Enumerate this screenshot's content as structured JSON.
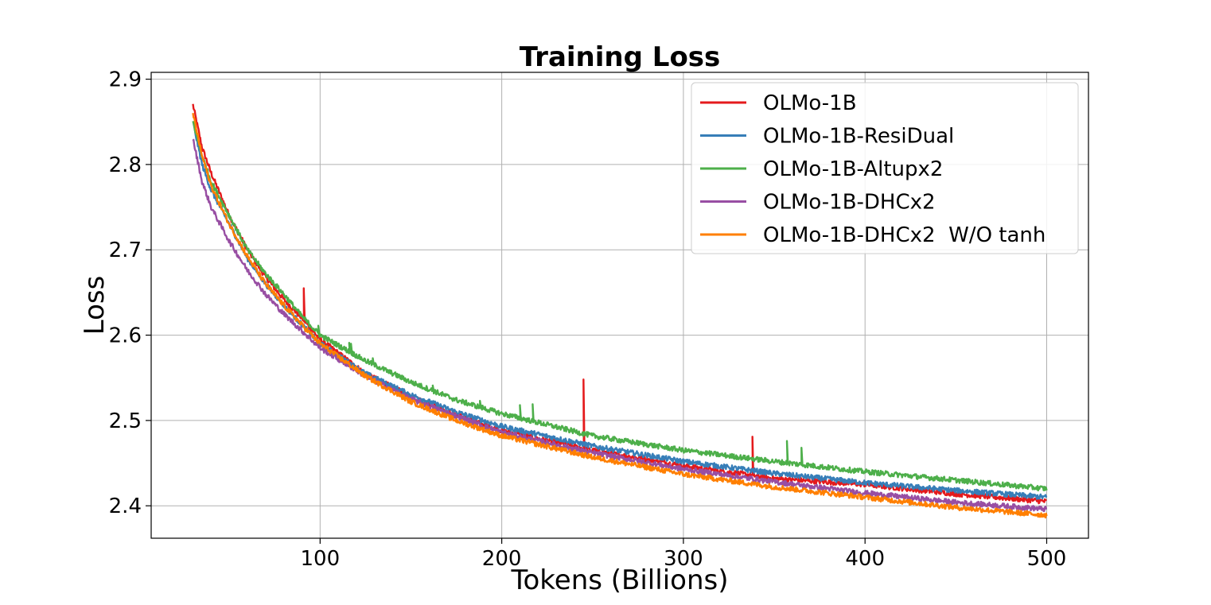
{
  "chart_data": {
    "type": "line",
    "title": "Training Loss",
    "xlabel": "Tokens (Billions)",
    "ylabel": "Loss",
    "xlim": [
      7,
      523
    ],
    "ylim": [
      2.362,
      2.908
    ],
    "xticks": [
      100,
      200,
      300,
      400,
      500
    ],
    "yticks": [
      2.4,
      2.5,
      2.6,
      2.7,
      2.8,
      2.9
    ],
    "xtick_labels": [
      "100",
      "200",
      "300",
      "400",
      "500"
    ],
    "ytick_labels": [
      "2.4",
      "2.5",
      "2.6",
      "2.7",
      "2.8",
      "2.9"
    ],
    "grid": true,
    "legend_position": "top-right",
    "x": [
      30,
      35,
      40,
      50,
      60,
      70,
      80,
      90,
      100,
      125,
      150,
      175,
      200,
      250,
      300,
      350,
      400,
      450,
      500
    ],
    "series": [
      {
        "name": "OLMo-1B",
        "color": "#e41a1c",
        "values": [
          2.87,
          2.82,
          2.79,
          2.74,
          2.7,
          2.668,
          2.642,
          2.62,
          2.595,
          2.555,
          2.528,
          2.506,
          2.488,
          2.465,
          2.447,
          2.432,
          2.425,
          2.414,
          2.405
        ],
        "spikes": [
          [
            30,
            2.886
          ],
          [
            91,
            2.655
          ],
          [
            245,
            2.548
          ],
          [
            338,
            2.481
          ]
        ]
      },
      {
        "name": "OLMo-1B-ResiDual",
        "color": "#377eb8",
        "values": [
          2.85,
          2.8,
          2.77,
          2.73,
          2.69,
          2.66,
          2.635,
          2.612,
          2.59,
          2.555,
          2.53,
          2.51,
          2.493,
          2.47,
          2.452,
          2.438,
          2.427,
          2.418,
          2.41
        ],
        "spikes": []
      },
      {
        "name": "OLMo-1B-Altupx2",
        "color": "#4daf4a",
        "values": [
          2.85,
          2.81,
          2.78,
          2.74,
          2.7,
          2.672,
          2.648,
          2.622,
          2.6,
          2.57,
          2.545,
          2.524,
          2.508,
          2.482,
          2.465,
          2.452,
          2.44,
          2.43,
          2.42
        ],
        "spikes": [
          [
            99,
            2.611
          ],
          [
            116,
            2.591
          ],
          [
            117,
            2.59
          ],
          [
            129,
            2.573
          ],
          [
            162,
            2.541
          ],
          [
            188,
            2.523
          ],
          [
            210,
            2.518
          ],
          [
            217,
            2.519
          ],
          [
            357,
            2.476
          ],
          [
            365,
            2.468
          ]
        ]
      },
      {
        "name": "OLMo-1B-DHCx2",
        "color": "#984ea3",
        "values": [
          2.83,
          2.78,
          2.75,
          2.71,
          2.676,
          2.648,
          2.625,
          2.605,
          2.585,
          2.552,
          2.525,
          2.505,
          2.486,
          2.462,
          2.443,
          2.428,
          2.415,
          2.404,
          2.396
        ],
        "spikes": []
      },
      {
        "name": "OLMo-1B-DHCx2  W/O tanh",
        "color": "#ff7f00",
        "values": [
          2.86,
          2.81,
          2.775,
          2.73,
          2.692,
          2.66,
          2.635,
          2.612,
          2.59,
          2.552,
          2.522,
          2.5,
          2.482,
          2.457,
          2.437,
          2.422,
          2.41,
          2.398,
          2.389
        ],
        "spikes": []
      }
    ]
  }
}
